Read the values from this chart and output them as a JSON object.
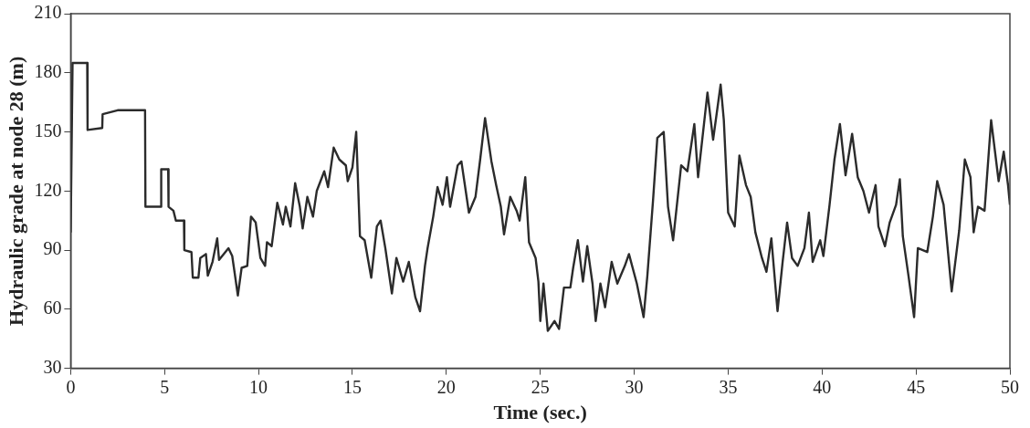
{
  "chart_data": {
    "type": "line",
    "xlabel": "Time (sec.)",
    "ylabel": "Hydraulic grade at node 28 (m)",
    "xlim": [
      0,
      50
    ],
    "xticks": [
      0,
      5,
      10,
      15,
      20,
      25,
      30,
      35,
      40,
      45,
      50
    ],
    "ylim": [
      30,
      210
    ],
    "yticks": [
      30,
      60,
      90,
      120,
      150,
      180,
      210
    ],
    "grid": false,
    "legend": false,
    "marker": "none",
    "line_style": "solid",
    "series": [
      {
        "color": "#2b2b2b",
        "x": [
          0,
          0.1,
          0.88,
          0.9,
          1.68,
          1.7,
          2.5,
          3.96,
          3.98,
          4.8,
          4.82,
          5.19,
          5.21,
          5.47,
          5.6,
          6.03,
          6.05,
          6.43,
          6.5,
          6.8,
          6.9,
          7.2,
          7.3,
          7.55,
          7.8,
          7.9,
          8.4,
          8.6,
          8.9,
          9.1,
          9.4,
          9.6,
          9.85,
          10.1,
          10.35,
          10.45,
          10.7,
          11.0,
          11.3,
          11.45,
          11.7,
          11.95,
          12.2,
          12.35,
          12.6,
          12.9,
          13.1,
          13.5,
          13.7,
          14.0,
          14.3,
          14.65,
          14.75,
          15.0,
          15.2,
          15.4,
          15.65,
          16.0,
          16.3,
          16.5,
          16.75,
          17.1,
          17.34,
          17.7,
          18.0,
          18.35,
          18.6,
          18.86,
          19.0,
          19.3,
          19.53,
          19.8,
          20.03,
          20.2,
          20.6,
          20.8,
          21.2,
          21.55,
          21.8,
          22.06,
          22.4,
          22.65,
          22.9,
          23.07,
          23.4,
          23.74,
          23.9,
          24.2,
          24.4,
          24.75,
          24.9,
          25.0,
          25.17,
          25.4,
          25.76,
          26.0,
          26.26,
          26.6,
          26.75,
          27.0,
          27.27,
          27.5,
          27.78,
          27.95,
          28.2,
          28.45,
          28.8,
          29.1,
          29.5,
          29.72,
          30.14,
          30.5,
          30.7,
          31.0,
          31.23,
          31.57,
          31.8,
          32.07,
          32.5,
          32.83,
          33.2,
          33.4,
          33.9,
          34.2,
          34.6,
          34.77,
          35.0,
          35.35,
          35.6,
          35.95,
          36.2,
          36.45,
          36.8,
          37.04,
          37.3,
          37.63,
          37.9,
          38.14,
          38.4,
          38.7,
          39.06,
          39.3,
          39.5,
          39.9,
          40.07,
          40.4,
          40.66,
          40.95,
          41.25,
          41.6,
          41.9,
          42.2,
          42.5,
          42.85,
          43.0,
          43.35,
          43.6,
          43.94,
          44.14,
          44.3,
          44.6,
          44.9,
          45.1,
          45.6,
          45.9,
          46.13,
          46.47,
          46.9,
          47.3,
          47.6,
          47.9,
          48.07,
          48.3,
          48.65,
          49.0,
          49.4,
          49.67,
          49.9,
          50
        ],
        "values": [
          99,
          185,
          185,
          151,
          152,
          159,
          161,
          161,
          112,
          112,
          131,
          131,
          112,
          110,
          105,
          105,
          90,
          89,
          76,
          76,
          86,
          88,
          77,
          84,
          96,
          85,
          91,
          87,
          67,
          81,
          82,
          107,
          104,
          86,
          82,
          94,
          92,
          114,
          103,
          112,
          102,
          124,
          112,
          101,
          117,
          107,
          120,
          130,
          122,
          142,
          136,
          133,
          125,
          132,
          150,
          97,
          95,
          76,
          102,
          105,
          91,
          68,
          86,
          74,
          84,
          66,
          59,
          82,
          91,
          107,
          122,
          113,
          127,
          112,
          133,
          135,
          109,
          117,
          136,
          157,
          135,
          123,
          112,
          98,
          117,
          110,
          105,
          127,
          94,
          86,
          74,
          54,
          73,
          49,
          54,
          50,
          71,
          71,
          81,
          95,
          74,
          92,
          73,
          54,
          73,
          61,
          84,
          73,
          82,
          88,
          73,
          56,
          77,
          115,
          147,
          150,
          112,
          95,
          133,
          130,
          154,
          127,
          170,
          146,
          174,
          156,
          109,
          102,
          138,
          123,
          117,
          99,
          86,
          79,
          96,
          59,
          84,
          104,
          86,
          82,
          91,
          109,
          84,
          95,
          87,
          113,
          136,
          154,
          128,
          149,
          127,
          120,
          109,
          123,
          102,
          92,
          104,
          113,
          126,
          97,
          77,
          56,
          91,
          89,
          107,
          125,
          113,
          69,
          100,
          136,
          127,
          99,
          112,
          110,
          156,
          125,
          140,
          123,
          113
        ]
      }
    ]
  }
}
